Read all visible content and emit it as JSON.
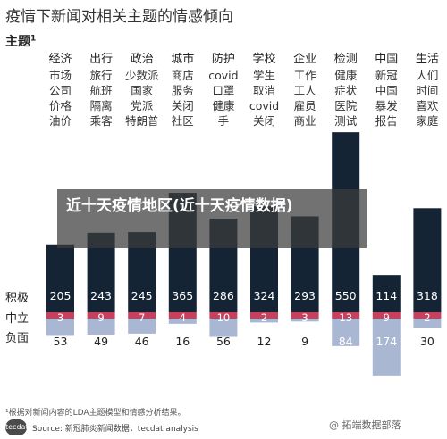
{
  "title": "疫情下新闻对相关主题的情感倾向",
  "subtitle": "主题",
  "subtitle_sup": "1",
  "row_labels": {
    "positive": "积极",
    "neutral": "中立",
    "negative": "负面"
  },
  "overlay_text": "近十天疫情地区(近十天疫情数据)",
  "footnote": "¹根据对新闻内容的LDA主题模型和情感分析结果。",
  "logo_text": "tecdat",
  "source": "Source: 新冠肺炎新闻数据，tecdat analysis",
  "watermark": "@ 拓端数据部落",
  "colors": {
    "positive": "#152434",
    "neutral": "#c8405c",
    "negative": "#a9b7d3"
  },
  "chart_data": {
    "type": "bar",
    "categories": [
      "经济",
      "出行",
      "政治",
      "城市",
      "防护",
      "学校",
      "企业",
      "检测",
      "中国",
      "生活"
    ],
    "category_terms": [
      [
        "市场",
        "公司",
        "价格",
        "油价"
      ],
      [
        "旅行",
        "航班",
        "隔离",
        "乘客"
      ],
      [
        "少数派",
        "国家",
        "党派",
        "特朗普"
      ],
      [
        "商店",
        "服务",
        "关闭",
        "社区"
      ],
      [
        "covid",
        "口罩",
        "健康",
        "手"
      ],
      [
        "学生",
        "取消",
        "covid",
        "关闭"
      ],
      [
        "工作",
        "工人",
        "雇员",
        "商业"
      ],
      [
        "健康",
        "症状",
        "医院",
        "测试"
      ],
      [
        "新冠",
        "中国",
        "暴发",
        "报告"
      ],
      [
        "人们",
        "时间",
        "喜欢",
        "家庭"
      ]
    ],
    "series": [
      {
        "name": "积极",
        "values": [
          205,
          243,
          245,
          365,
          286,
          324,
          293,
          550,
          114,
          318
        ]
      },
      {
        "name": "中立",
        "values": [
          3,
          9,
          7,
          4,
          10,
          2,
          3,
          13,
          9,
          2
        ]
      },
      {
        "name": "负面",
        "values": [
          53,
          49,
          46,
          16,
          56,
          12,
          9,
          84,
          174,
          30
        ]
      }
    ]
  }
}
